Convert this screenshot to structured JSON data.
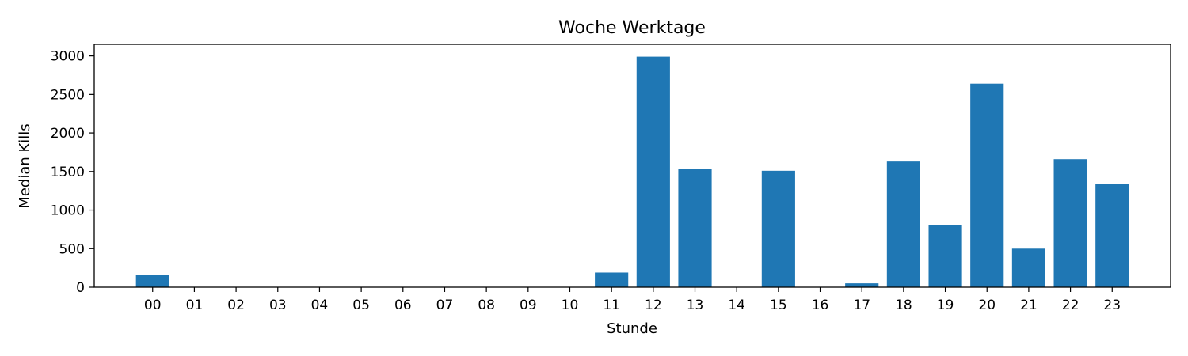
{
  "chart_data": {
    "type": "bar",
    "title": "Woche Werktage",
    "xlabel": "Stunde",
    "ylabel": "Median Kills",
    "categories": [
      "00",
      "01",
      "02",
      "03",
      "04",
      "05",
      "06",
      "07",
      "08",
      "09",
      "10",
      "11",
      "12",
      "13",
      "14",
      "15",
      "16",
      "17",
      "18",
      "19",
      "20",
      "21",
      "22",
      "23"
    ],
    "values": [
      160,
      0,
      0,
      0,
      0,
      0,
      0,
      0,
      0,
      0,
      0,
      190,
      2990,
      1530,
      0,
      1510,
      0,
      50,
      1630,
      810,
      2640,
      500,
      1660,
      1340
    ],
    "ylim": [
      0,
      3150
    ],
    "yticks": [
      0,
      500,
      1000,
      1500,
      2000,
      2500,
      3000
    ],
    "grid": false,
    "bar_color": "#1f77b4"
  }
}
